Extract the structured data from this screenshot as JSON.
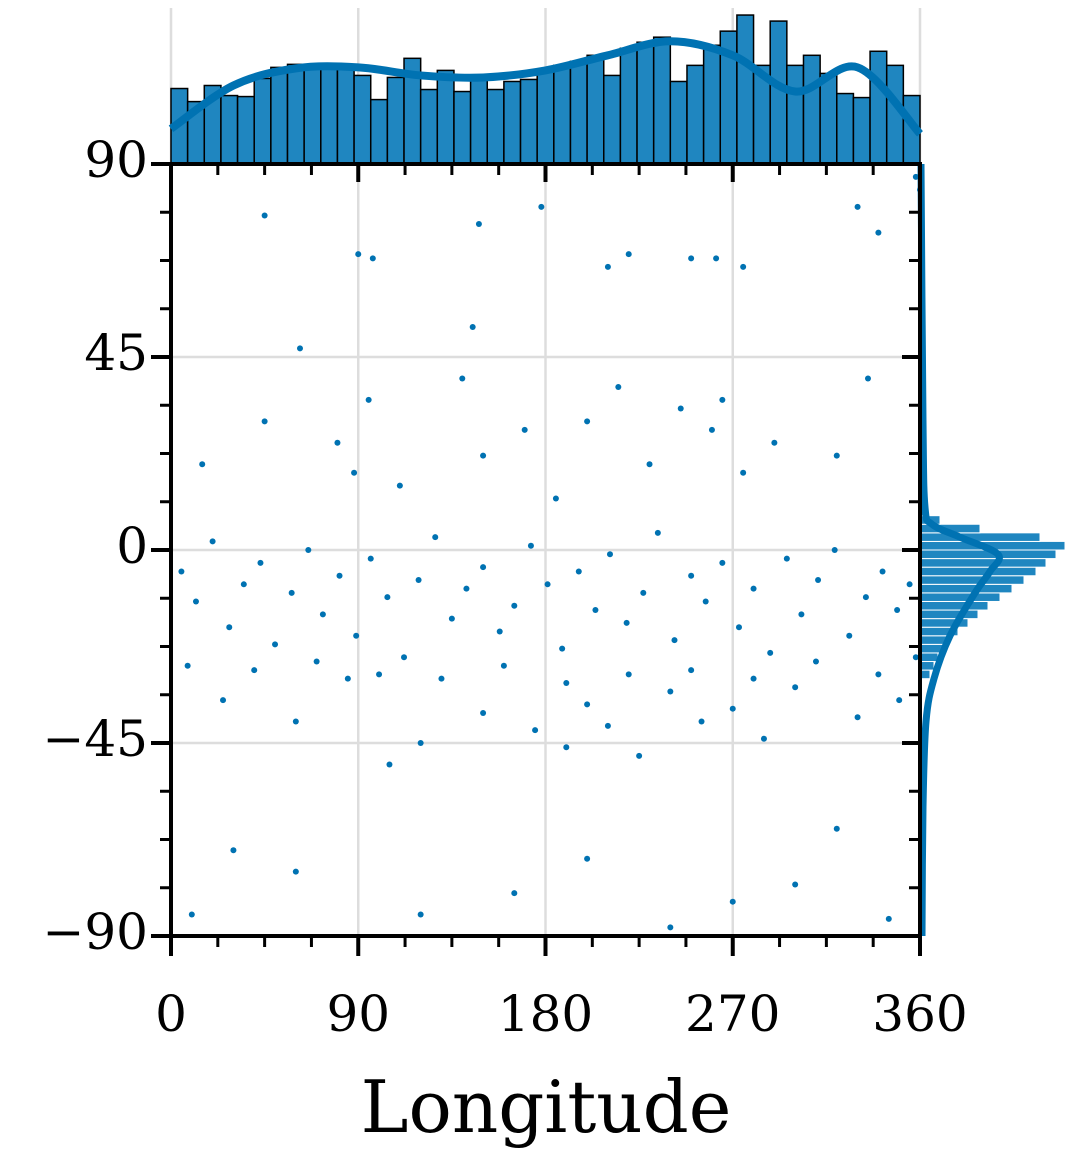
{
  "chart_data": {
    "type": "joint-scatter",
    "xlabel": "Longitude",
    "xlim": [
      0,
      360
    ],
    "ylim": [
      -90,
      90
    ],
    "xticks": [
      0,
      90,
      180,
      270,
      360
    ],
    "yticks": [
      {
        "value": -90,
        "label": "−90"
      },
      {
        "value": -45,
        "label": "−45"
      },
      0,
      45,
      90
    ],
    "xminor": [
      22.5,
      45,
      67.5,
      112.5,
      135,
      157.5,
      202.5,
      225,
      247.5,
      292.5,
      315,
      337.5
    ],
    "yminor": [
      -78.75,
      -67.5,
      -56.25,
      -33.75,
      -22.5,
      -11.25,
      11.25,
      22.5,
      33.75,
      56.25,
      67.5,
      78.75
    ],
    "grid": true,
    "color": "#0072b2",
    "x": [
      5,
      12,
      20,
      28,
      35,
      43,
      50,
      58,
      66,
      73,
      81,
      89,
      96,
      104,
      112,
      119,
      127,
      135,
      142,
      150,
      158,
      165,
      173,
      181,
      188,
      196,
      204,
      211,
      219,
      227,
      234,
      242,
      250,
      257,
      265,
      273,
      280,
      288,
      296,
      303,
      311,
      319,
      326,
      334,
      342,
      349,
      355,
      8,
      40,
      70,
      100,
      130,
      160,
      190,
      220,
      250,
      280,
      310,
      340,
      358,
      15,
      45,
      80,
      88,
      95,
      110,
      140,
      150,
      170,
      185,
      200,
      215,
      230,
      245,
      260,
      265,
      275,
      290,
      320,
      335,
      25,
      60,
      85,
      120,
      150,
      175,
      200,
      225,
      240,
      255,
      270,
      285,
      300,
      330,
      350,
      105,
      190,
      210,
      62,
      145,
      45,
      90,
      97,
      148,
      178,
      210,
      220,
      250,
      262,
      275,
      330,
      340,
      360,
      358,
      10,
      30,
      60,
      120,
      165,
      200,
      240,
      270,
      300,
      320,
      345
    ],
    "y": [
      -5,
      -12,
      2,
      -18,
      -8,
      -3,
      -22,
      -10,
      0,
      -15,
      -6,
      -20,
      -2,
      -11,
      -25,
      -7,
      3,
      -16,
      -9,
      -4,
      -19,
      -13,
      1,
      -8,
      -23,
      -5,
      -14,
      -1,
      -17,
      -10,
      4,
      -21,
      -6,
      -12,
      -3,
      -18,
      -9,
      -24,
      -2,
      -15,
      -7,
      0,
      -20,
      -11,
      -5,
      -14,
      -8,
      -27,
      -28,
      -26,
      -29,
      -30,
      -27,
      -31,
      -29,
      -28,
      -30,
      -26,
      -29,
      -25,
      20,
      30,
      25,
      18,
      35,
      15,
      40,
      22,
      28,
      12,
      30,
      38,
      20,
      33,
      28,
      35,
      18,
      25,
      22,
      40,
      -35,
      -40,
      -30,
      -45,
      -38,
      -42,
      -36,
      -48,
      -33,
      -40,
      -37,
      -44,
      -32,
      -39,
      -35,
      -50,
      -46,
      -41,
      47,
      52,
      78,
      69,
      68,
      76,
      80,
      66,
      69,
      68,
      68,
      66,
      80,
      74,
      84,
      87,
      -85,
      -70,
      -75,
      -85,
      -80,
      -72,
      -88,
      -82,
      -78,
      -65,
      -86
    ],
    "top_hist": {
      "bins": [
        0,
        8,
        16,
        24,
        32,
        40,
        48,
        56,
        64,
        72,
        80,
        88,
        96,
        104,
        112,
        120,
        128,
        136,
        144,
        152,
        160,
        168,
        176,
        184,
        192,
        200,
        208,
        216,
        224,
        232,
        240,
        248,
        256,
        264,
        272,
        280,
        288,
        296,
        304,
        312,
        320,
        328,
        336,
        344,
        352,
        360
      ],
      "counts": [
        75,
        62,
        78,
        68,
        67,
        85,
        96,
        99,
        96,
        96,
        94,
        88,
        64,
        86,
        105,
        74,
        93,
        72,
        84,
        74,
        82,
        84,
        92,
        98,
        102,
        108,
        88,
        115,
        121,
        126,
        82,
        98,
        118,
        132,
        148,
        98,
        142,
        98,
        108,
        90,
        70,
        66,
        112,
        98,
        68
      ],
      "ylim": [
        0,
        155
      ],
      "kde_x": [
        0,
        30,
        60,
        90,
        120,
        150,
        180,
        210,
        240,
        270,
        300,
        330,
        360
      ],
      "kde_y": [
        35,
        78,
        95,
        96,
        88,
        86,
        93,
        108,
        122,
        108,
        72,
        96,
        30
      ]
    },
    "right_hist": {
      "bins": [
        -30,
        -28,
        -26,
        -24,
        -22,
        -20,
        -18,
        -16,
        -14,
        -12,
        -10,
        -8,
        -6,
        -4,
        -2,
        0,
        2,
        4,
        6,
        8,
        10
      ],
      "counts": [
        10,
        14,
        18,
        24,
        30,
        38,
        48,
        58,
        68,
        80,
        92,
        104,
        116,
        126,
        136,
        145,
        120,
        60,
        20,
        6
      ],
      "xlim": [
        0,
        155
      ],
      "kde_y": [
        -90,
        -60,
        -40,
        -30,
        -20,
        -10,
        -5,
        -1,
        3,
        6,
        10,
        30,
        90
      ],
      "kde_x": [
        2,
        3,
        6,
        14,
        30,
        55,
        70,
        78,
        40,
        12,
        5,
        3,
        1
      ]
    }
  }
}
